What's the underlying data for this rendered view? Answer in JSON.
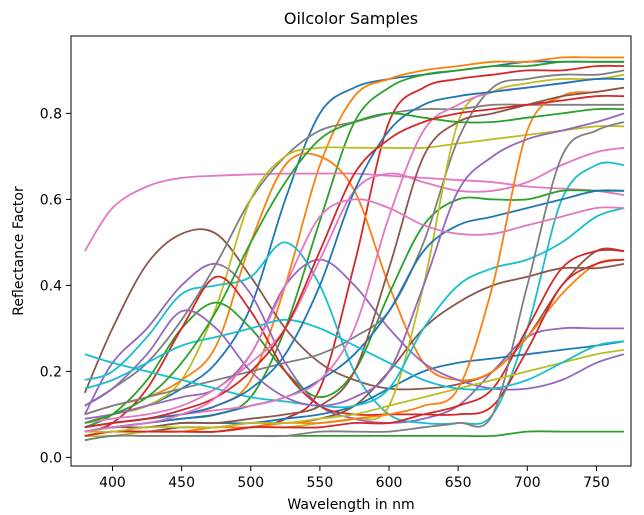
{
  "chart_data": {
    "type": "line",
    "title": "Oilcolor Samples",
    "xlabel": "Wavelength in nm",
    "ylabel": "Reflectance Factor",
    "xlim": [
      370,
      775
    ],
    "ylim": [
      -0.02,
      0.98
    ],
    "xticks": [
      400,
      450,
      500,
      550,
      600,
      650,
      700,
      750
    ],
    "yticks": [
      0.0,
      0.2,
      0.4,
      0.6,
      0.8
    ],
    "ytick_labels": [
      "0.0",
      "0.2",
      "0.4",
      "0.6",
      "0.8"
    ],
    "grid": false,
    "legend": "none",
    "x": [
      380,
      400,
      425,
      450,
      475,
      500,
      525,
      550,
      575,
      600,
      625,
      650,
      675,
      700,
      725,
      750,
      770
    ],
    "series": [
      {
        "color": "#1f77b4",
        "values": [
          0.08,
          0.1,
          0.12,
          0.16,
          0.22,
          0.35,
          0.6,
          0.8,
          0.86,
          0.88,
          0.89,
          0.9,
          0.91,
          0.92,
          0.92,
          0.92,
          0.92
        ]
      },
      {
        "color": "#ff7f0e",
        "values": [
          0.07,
          0.08,
          0.09,
          0.1,
          0.12,
          0.18,
          0.4,
          0.68,
          0.84,
          0.88,
          0.9,
          0.91,
          0.92,
          0.92,
          0.93,
          0.93,
          0.93
        ]
      },
      {
        "color": "#2ca02c",
        "values": [
          0.06,
          0.07,
          0.08,
          0.09,
          0.1,
          0.14,
          0.3,
          0.55,
          0.78,
          0.86,
          0.89,
          0.9,
          0.91,
          0.91,
          0.92,
          0.92,
          0.92
        ]
      },
      {
        "color": "#d62728",
        "values": [
          0.05,
          0.06,
          0.06,
          0.06,
          0.06,
          0.07,
          0.09,
          0.16,
          0.45,
          0.78,
          0.86,
          0.88,
          0.89,
          0.9,
          0.9,
          0.91,
          0.91
        ]
      },
      {
        "color": "#9467bd",
        "values": [
          0.1,
          0.22,
          0.3,
          0.4,
          0.45,
          0.38,
          0.22,
          0.12,
          0.09,
          0.08,
          0.09,
          0.12,
          0.2,
          0.28,
          0.3,
          0.3,
          0.3
        ]
      },
      {
        "color": "#8c564b",
        "values": [
          0.15,
          0.3,
          0.45,
          0.52,
          0.52,
          0.42,
          0.3,
          0.22,
          0.18,
          0.16,
          0.16,
          0.17,
          0.2,
          0.28,
          0.4,
          0.48,
          0.48
        ]
      },
      {
        "color": "#e377c2",
        "values": [
          0.48,
          0.58,
          0.63,
          0.65,
          0.655,
          0.658,
          0.66,
          0.66,
          0.66,
          0.655,
          0.65,
          0.645,
          0.64,
          0.63,
          0.625,
          0.62,
          0.61
        ]
      },
      {
        "color": "#7f7f7f",
        "values": [
          0.12,
          0.16,
          0.22,
          0.32,
          0.45,
          0.6,
          0.7,
          0.76,
          0.78,
          0.8,
          0.81,
          0.81,
          0.82,
          0.82,
          0.82,
          0.82,
          0.82
        ]
      },
      {
        "color": "#bcbd22",
        "values": [
          0.08,
          0.1,
          0.12,
          0.18,
          0.35,
          0.6,
          0.7,
          0.72,
          0.72,
          0.72,
          0.72,
          0.73,
          0.74,
          0.75,
          0.76,
          0.77,
          0.77
        ]
      },
      {
        "color": "#17becf",
        "values": [
          0.18,
          0.2,
          0.28,
          0.38,
          0.4,
          0.42,
          0.5,
          0.4,
          0.2,
          0.1,
          0.08,
          0.08,
          0.1,
          0.3,
          0.6,
          0.68,
          0.68
        ]
      },
      {
        "color": "#1f77b4",
        "values": [
          0.06,
          0.07,
          0.07,
          0.08,
          0.08,
          0.08,
          0.09,
          0.1,
          0.12,
          0.16,
          0.2,
          0.22,
          0.23,
          0.24,
          0.25,
          0.26,
          0.27
        ]
      },
      {
        "color": "#ff7f0e",
        "values": [
          0.1,
          0.12,
          0.14,
          0.18,
          0.26,
          0.5,
          0.68,
          0.7,
          0.62,
          0.4,
          0.22,
          0.18,
          0.2,
          0.28,
          0.38,
          0.45,
          0.46
        ]
      },
      {
        "color": "#2ca02c",
        "values": [
          0.07,
          0.1,
          0.18,
          0.3,
          0.36,
          0.3,
          0.2,
          0.14,
          0.2,
          0.38,
          0.54,
          0.6,
          0.6,
          0.6,
          0.62,
          0.62,
          0.62
        ]
      },
      {
        "color": "#d62728",
        "values": [
          0.06,
          0.08,
          0.16,
          0.3,
          0.42,
          0.34,
          0.2,
          0.12,
          0.1,
          0.1,
          0.1,
          0.1,
          0.12,
          0.25,
          0.4,
          0.45,
          0.46
        ]
      },
      {
        "color": "#9467bd",
        "values": [
          0.09,
          0.1,
          0.12,
          0.14,
          0.16,
          0.24,
          0.4,
          0.46,
          0.4,
          0.3,
          0.22,
          0.18,
          0.16,
          0.16,
          0.18,
          0.22,
          0.24
        ]
      },
      {
        "color": "#8c564b",
        "values": [
          0.05,
          0.06,
          0.06,
          0.07,
          0.07,
          0.08,
          0.08,
          0.09,
          0.12,
          0.2,
          0.3,
          0.36,
          0.4,
          0.42,
          0.44,
          0.44,
          0.45
        ]
      },
      {
        "color": "#e377c2",
        "values": [
          0.08,
          0.09,
          0.1,
          0.12,
          0.16,
          0.22,
          0.3,
          0.46,
          0.62,
          0.66,
          0.64,
          0.62,
          0.62,
          0.64,
          0.68,
          0.71,
          0.72
        ]
      },
      {
        "color": "#7f7f7f",
        "values": [
          0.1,
          0.12,
          0.14,
          0.16,
          0.18,
          0.2,
          0.22,
          0.24,
          0.28,
          0.34,
          0.5,
          0.74,
          0.86,
          0.88,
          0.89,
          0.89,
          0.9
        ]
      },
      {
        "color": "#bcbd22",
        "values": [
          0.05,
          0.05,
          0.06,
          0.06,
          0.06,
          0.07,
          0.07,
          0.08,
          0.09,
          0.12,
          0.4,
          0.78,
          0.85,
          0.87,
          0.88,
          0.88,
          0.89
        ]
      },
      {
        "color": "#17becf",
        "values": [
          0.24,
          0.22,
          0.2,
          0.18,
          0.16,
          0.14,
          0.13,
          0.12,
          0.12,
          0.16,
          0.3,
          0.4,
          0.44,
          0.46,
          0.5,
          0.56,
          0.58
        ]
      },
      {
        "color": "#1f77b4",
        "values": [
          0.06,
          0.07,
          0.08,
          0.09,
          0.1,
          0.12,
          0.14,
          0.18,
          0.24,
          0.34,
          0.48,
          0.54,
          0.56,
          0.58,
          0.6,
          0.62,
          0.62
        ]
      },
      {
        "color": "#ff7f0e",
        "values": [
          0.05,
          0.06,
          0.06,
          0.06,
          0.07,
          0.07,
          0.08,
          0.08,
          0.09,
          0.1,
          0.12,
          0.16,
          0.4,
          0.76,
          0.84,
          0.85,
          0.86
        ]
      },
      {
        "color": "#2ca02c",
        "values": [
          0.04,
          0.05,
          0.05,
          0.05,
          0.05,
          0.05,
          0.05,
          0.05,
          0.05,
          0.05,
          0.05,
          0.05,
          0.05,
          0.06,
          0.06,
          0.06,
          0.06
        ]
      },
      {
        "color": "#d62728",
        "values": [
          0.05,
          0.06,
          0.06,
          0.06,
          0.06,
          0.07,
          0.07,
          0.07,
          0.08,
          0.08,
          0.1,
          0.12,
          0.16,
          0.3,
          0.44,
          0.48,
          0.48
        ]
      },
      {
        "color": "#9467bd",
        "values": [
          0.12,
          0.16,
          0.24,
          0.34,
          0.3,
          0.2,
          0.14,
          0.12,
          0.14,
          0.2,
          0.4,
          0.62,
          0.7,
          0.74,
          0.76,
          0.78,
          0.8
        ]
      },
      {
        "color": "#8c564b",
        "values": [
          0.06,
          0.07,
          0.07,
          0.08,
          0.08,
          0.09,
          0.1,
          0.12,
          0.2,
          0.44,
          0.7,
          0.78,
          0.8,
          0.82,
          0.84,
          0.85,
          0.86
        ]
      },
      {
        "color": "#e377c2",
        "values": [
          0.07,
          0.08,
          0.09,
          0.1,
          0.11,
          0.12,
          0.14,
          0.18,
          0.3,
          0.56,
          0.76,
          0.82,
          0.85,
          0.86,
          0.87,
          0.88,
          0.88
        ]
      },
      {
        "color": "#7f7f7f",
        "values": [
          0.04,
          0.05,
          0.05,
          0.05,
          0.05,
          0.05,
          0.05,
          0.06,
          0.06,
          0.06,
          0.07,
          0.08,
          0.1,
          0.4,
          0.7,
          0.76,
          0.78
        ]
      },
      {
        "color": "#bcbd22",
        "values": [
          0.06,
          0.06,
          0.07,
          0.07,
          0.07,
          0.08,
          0.08,
          0.09,
          0.1,
          0.12,
          0.14,
          0.16,
          0.18,
          0.2,
          0.22,
          0.24,
          0.25
        ]
      },
      {
        "color": "#17becf",
        "values": [
          0.16,
          0.18,
          0.22,
          0.26,
          0.28,
          0.3,
          0.32,
          0.3,
          0.26,
          0.22,
          0.18,
          0.16,
          0.16,
          0.18,
          0.22,
          0.26,
          0.27
        ]
      },
      {
        "color": "#1f77b4",
        "values": [
          0.07,
          0.08,
          0.09,
          0.1,
          0.12,
          0.16,
          0.24,
          0.4,
          0.62,
          0.76,
          0.82,
          0.84,
          0.85,
          0.86,
          0.87,
          0.88,
          0.88
        ]
      },
      {
        "color": "#2ca02c",
        "values": [
          0.08,
          0.1,
          0.14,
          0.22,
          0.34,
          0.5,
          0.64,
          0.74,
          0.78,
          0.8,
          0.79,
          0.78,
          0.78,
          0.79,
          0.8,
          0.81,
          0.81
        ]
      },
      {
        "color": "#d62728",
        "values": [
          0.07,
          0.08,
          0.09,
          0.11,
          0.14,
          0.2,
          0.3,
          0.48,
          0.66,
          0.74,
          0.78,
          0.8,
          0.81,
          0.82,
          0.83,
          0.84,
          0.84
        ]
      },
      {
        "color": "#e377c2",
        "values": [
          0.06,
          0.07,
          0.08,
          0.1,
          0.14,
          0.24,
          0.4,
          0.56,
          0.6,
          0.58,
          0.54,
          0.52,
          0.52,
          0.54,
          0.56,
          0.58,
          0.58
        ]
      }
    ]
  }
}
